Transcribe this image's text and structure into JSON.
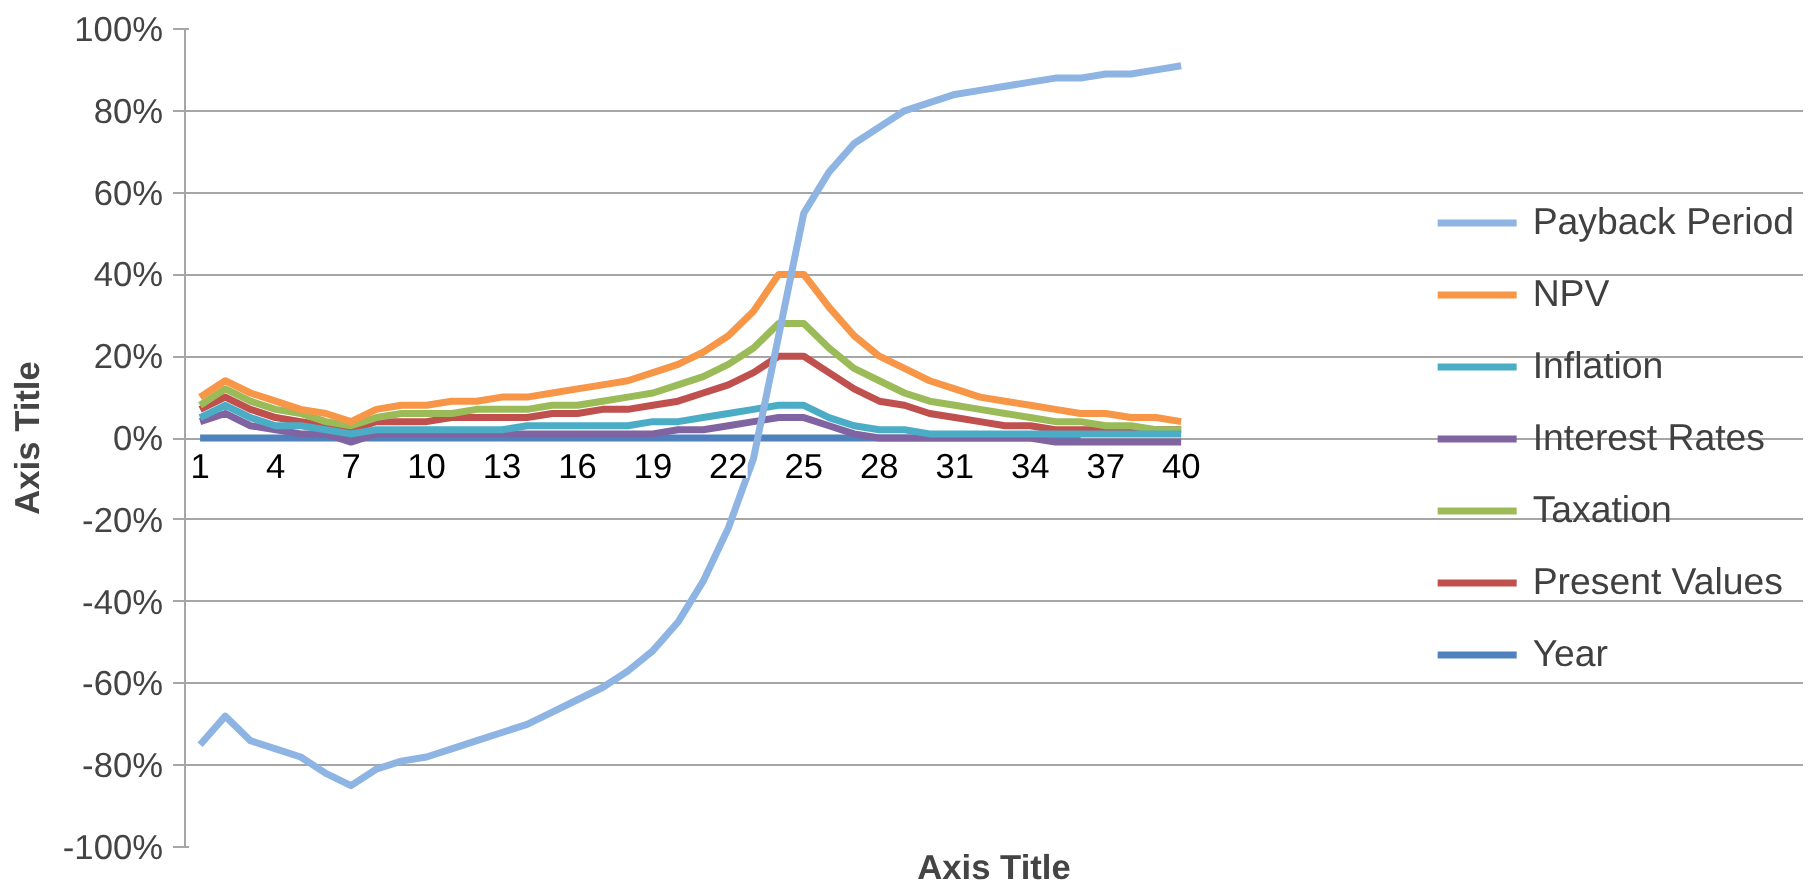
{
  "chart_data": {
    "type": "line",
    "xlabel": "Axis Title",
    "ylabel": "Axis Title",
    "categories": [
      "1",
      null,
      null,
      "4",
      null,
      null,
      "7",
      null,
      null,
      "10",
      null,
      null,
      "13",
      null,
      null,
      "16",
      null,
      null,
      "19",
      null,
      null,
      "22",
      null,
      null,
      "25",
      null,
      null,
      "28",
      null,
      null,
      "31",
      null,
      null,
      "34",
      null,
      null,
      "37",
      null,
      null,
      "40"
    ],
    "ylim": [
      -100,
      100
    ],
    "yticks": [
      {
        "value": -100,
        "label": "-100%"
      },
      {
        "value": -80,
        "label": "-80%"
      },
      {
        "value": -60,
        "label": "-60%"
      },
      {
        "value": -40,
        "label": "-40%"
      },
      {
        "value": -20,
        "label": "-20%"
      },
      {
        "value": 0,
        "label": "0%"
      },
      {
        "value": 20,
        "label": "20%"
      },
      {
        "value": 40,
        "label": "40%"
      },
      {
        "value": 60,
        "label": "60%"
      },
      {
        "value": 80,
        "label": "80%"
      },
      {
        "value": 100,
        "label": "100%"
      }
    ],
    "grid": "y",
    "legend": "right",
    "marker": "none",
    "line_style": "solid",
    "series": [
      {
        "name": "Payback Period",
        "color": "#8eb4e3",
        "values": [
          -75,
          -68,
          -74,
          -76,
          -78,
          -82,
          -85,
          -81,
          -79,
          -78,
          -76,
          -74,
          -72,
          -70,
          -67,
          -64,
          -61,
          -57,
          -52,
          -45,
          -35,
          -22,
          -5,
          25,
          55,
          65,
          72,
          76,
          80,
          82,
          84,
          85,
          86,
          87,
          88,
          88,
          89,
          89,
          90,
          91
        ]
      },
      {
        "name": "NPV",
        "color": "#f79646",
        "values": [
          10,
          14,
          11,
          9,
          7,
          6,
          4,
          7,
          8,
          8,
          9,
          9,
          10,
          10,
          11,
          12,
          13,
          14,
          16,
          18,
          21,
          25,
          31,
          40,
          40,
          32,
          25,
          20,
          17,
          14,
          12,
          10,
          9,
          8,
          7,
          6,
          6,
          5,
          5,
          4
        ]
      },
      {
        "name": "Inflation",
        "color": "#4bacc6",
        "values": [
          5,
          8,
          5,
          3,
          3,
          2,
          1,
          2,
          2,
          2,
          2,
          2,
          2,
          3,
          3,
          3,
          3,
          3,
          4,
          4,
          5,
          6,
          7,
          8,
          8,
          5,
          3,
          2,
          2,
          1,
          1,
          1,
          1,
          1,
          1,
          1,
          1,
          1,
          1,
          1
        ]
      },
      {
        "name": "Interest Rates",
        "color": "#8064a2",
        "values": [
          4,
          6,
          3,
          2,
          1,
          1,
          -1,
          1,
          1,
          1,
          1,
          1,
          1,
          1,
          1,
          1,
          1,
          1,
          1,
          2,
          2,
          3,
          4,
          5,
          5,
          3,
          1,
          0,
          0,
          0,
          0,
          0,
          0,
          0,
          -1,
          -1,
          -1,
          -1,
          -1,
          -1
        ]
      },
      {
        "name": "Taxation",
        "color": "#9bbb59",
        "values": [
          8,
          12,
          9,
          7,
          6,
          4,
          3,
          5,
          6,
          6,
          6,
          7,
          7,
          7,
          8,
          8,
          9,
          10,
          11,
          13,
          15,
          18,
          22,
          28,
          28,
          22,
          17,
          14,
          11,
          9,
          8,
          7,
          6,
          5,
          4,
          4,
          3,
          3,
          2,
          2
        ]
      },
      {
        "name": "Present Values",
        "color": "#c0504d",
        "values": [
          7,
          10,
          7,
          5,
          4,
          3,
          2,
          4,
          4,
          4,
          5,
          5,
          5,
          5,
          6,
          6,
          7,
          7,
          8,
          9,
          11,
          13,
          16,
          20,
          20,
          16,
          12,
          9,
          8,
          6,
          5,
          4,
          3,
          3,
          2,
          2,
          2,
          2,
          2,
          2
        ]
      },
      {
        "name": "Year",
        "color": "#4f81bd",
        "values": [
          0,
          0,
          0,
          0,
          0,
          0,
          0,
          0,
          0,
          0,
          0,
          0,
          0,
          0,
          0,
          0,
          0,
          0,
          0,
          0,
          0,
          0,
          0,
          0,
          0,
          0,
          0,
          0,
          0,
          0,
          0,
          0,
          0,
          0,
          0,
          0,
          null,
          null,
          null,
          null
        ]
      }
    ]
  }
}
